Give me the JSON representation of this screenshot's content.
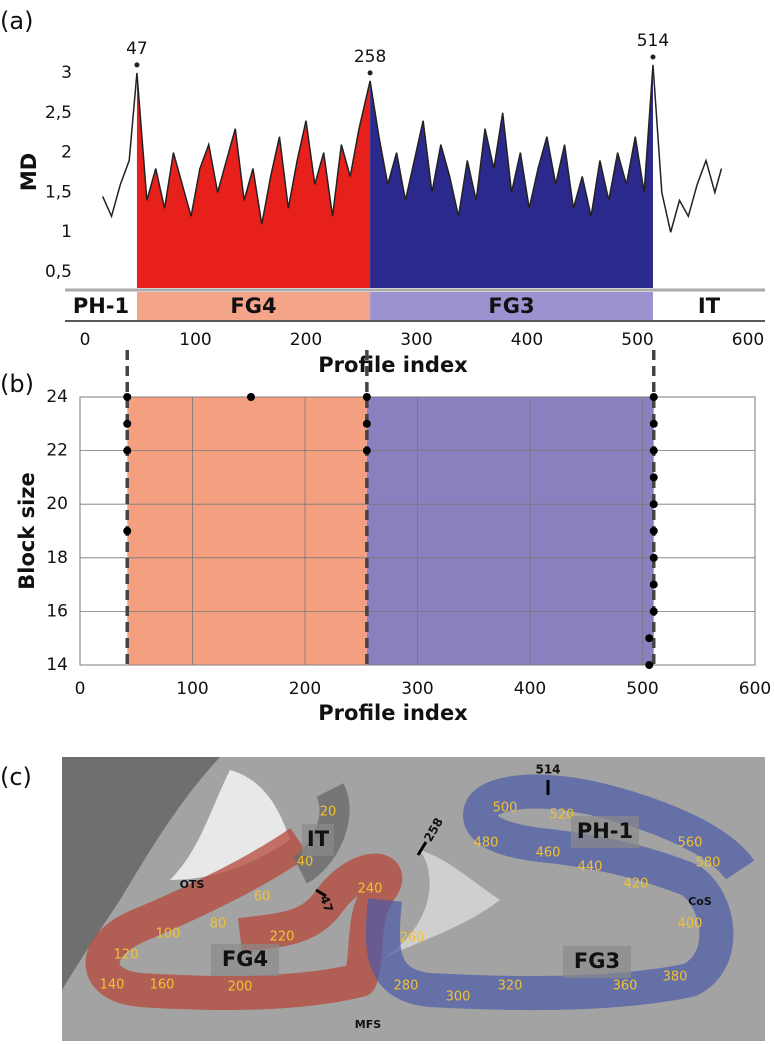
{
  "chart_data": [
    {
      "type": "area-line",
      "ylabel": "MD",
      "xlabel": "Profile index",
      "x": [
        16,
        24,
        32,
        40,
        47,
        56,
        64,
        72,
        80,
        88,
        96,
        104,
        112,
        120,
        128,
        136,
        144,
        152,
        160,
        168,
        176,
        184,
        192,
        200,
        208,
        216,
        224,
        232,
        240,
        248,
        258,
        266,
        274,
        282,
        290,
        298,
        306,
        314,
        322,
        330,
        338,
        346,
        354,
        362,
        370,
        378,
        386,
        394,
        402,
        410,
        418,
        426,
        434,
        442,
        450,
        458,
        466,
        474,
        482,
        490,
        498,
        506,
        514,
        522,
        530,
        538,
        546,
        554,
        562,
        570,
        576
      ],
      "values": [
        1.45,
        1.2,
        1.6,
        1.9,
        3.0,
        1.4,
        1.8,
        1.3,
        2.0,
        1.6,
        1.2,
        1.8,
        2.1,
        1.5,
        1.9,
        2.3,
        1.4,
        1.8,
        1.1,
        1.7,
        2.2,
        1.3,
        1.9,
        2.4,
        1.6,
        2.0,
        1.2,
        2.1,
        1.7,
        2.3,
        2.9,
        2.2,
        1.6,
        2.0,
        1.4,
        1.9,
        2.4,
        1.5,
        2.1,
        1.7,
        1.2,
        1.9,
        1.4,
        2.3,
        1.8,
        2.5,
        1.5,
        2.0,
        1.3,
        1.8,
        2.2,
        1.6,
        2.1,
        1.3,
        1.7,
        1.2,
        1.9,
        1.4,
        2.0,
        1.6,
        2.2,
        1.5,
        3.1,
        1.5,
        1.0,
        1.4,
        1.2,
        1.6,
        1.9,
        1.5,
        1.8
      ],
      "line_color": "#222222",
      "regions": [
        {
          "start": 47,
          "end": 258,
          "color": "#e8201c"
        },
        {
          "start": 258,
          "end": 514,
          "color": "#2b2a8c"
        }
      ],
      "peaks": [
        47,
        258,
        514
      ],
      "region_bar": [
        {
          "label": "PH-1",
          "start": 0,
          "end": 47,
          "color": "#ffffff"
        },
        {
          "label": "FG4",
          "start": 47,
          "end": 258,
          "color": "#f4a488"
        },
        {
          "label": "FG3",
          "start": 258,
          "end": 514,
          "color": "#9b93cf"
        },
        {
          "label": "IT",
          "start": 514,
          "end": 600,
          "color": "#ffffff"
        }
      ],
      "xlim": [
        0,
        600
      ],
      "xticks": [
        0,
        100,
        200,
        300,
        400,
        500,
        600
      ],
      "ylim": [
        0.3,
        3.2
      ],
      "yticks": [
        {
          "value": 0.5,
          "label": "0,5"
        },
        1,
        {
          "value": 1.5,
          "label": "1,5"
        },
        2,
        {
          "value": 2.5,
          "label": "2,5"
        },
        3
      ]
    },
    {
      "type": "scatter",
      "ylabel": "Block size",
      "xlabel": "Profile index",
      "x": [
        42,
        42,
        42,
        42,
        152,
        255,
        255,
        255,
        510,
        510,
        510,
        510,
        510,
        510,
        510,
        510,
        510,
        506,
        506
      ],
      "values": [
        24,
        23,
        22,
        19,
        24,
        24,
        23,
        22,
        24,
        23,
        22,
        21,
        20,
        19,
        18,
        17,
        16,
        15,
        14
      ],
      "color": "#000000",
      "regions": [
        {
          "start": 42,
          "end": 255,
          "color": "#f4a080"
        },
        {
          "start": 255,
          "end": 510,
          "color": "#8a80c0"
        }
      ],
      "boundaries": [
        42,
        255,
        510
      ],
      "xlim": [
        0,
        600
      ],
      "xticks": [
        0,
        100,
        200,
        300,
        400,
        500,
        600
      ],
      "ylim": [
        14,
        24
      ],
      "yticks": [
        14,
        16,
        18,
        20,
        22,
        24
      ],
      "grid": true
    }
  ],
  "figure": {
    "panel_labels": [
      "(a)",
      "(b)",
      "(c)"
    ],
    "scale_labels": [
      "20",
      "40",
      "60",
      "80",
      "100",
      "120",
      "140",
      "160",
      "200",
      "220",
      "240",
      "260",
      "280",
      "300",
      "320",
      "360",
      "380",
      "400",
      "420",
      "440",
      "460",
      "480",
      "500",
      "520",
      "560",
      "580"
    ],
    "region_labels": [
      "IT",
      "FG4",
      "FG3",
      "PH-1"
    ],
    "sulcus_labels": [
      "OTS",
      "MFS",
      "CoS"
    ],
    "marker_labels": [
      "514",
      "258",
      "47"
    ]
  }
}
